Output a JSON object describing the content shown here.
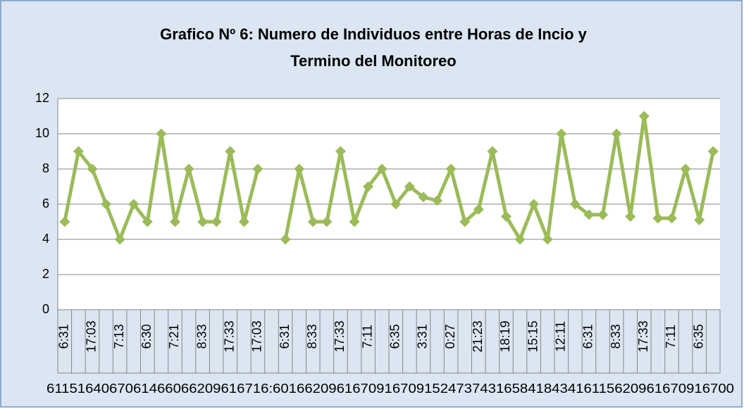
{
  "chart_data": {
    "type": "line",
    "title": "Grafico Nº 6: Numero de Individuos entre Horas de Incio y",
    "title_line2": "Termino del Monitoreo",
    "categories": [
      "6:31",
      null,
      "17:03",
      null,
      "7:13",
      null,
      "6:30",
      null,
      "7:21",
      null,
      "8:33",
      null,
      "17:33",
      null,
      "17:03",
      null,
      "6:31",
      null,
      "8:33",
      null,
      "17:33",
      null,
      "7:11",
      null,
      "6:35",
      null,
      "3:31",
      null,
      "0:27",
      null,
      "21:23",
      null,
      "18:19",
      null,
      "15:15",
      null,
      "12:11",
      null,
      "6:31",
      null,
      "8:33",
      null,
      "17:33",
      null,
      "7:11",
      null,
      "6:35",
      null
    ],
    "outer_labels": "6115164067061466066209616716:6016620961670916709152473743165841843416115620961670916700",
    "series": [
      {
        "name": "Individuos",
        "color": "#9bbb59",
        "values": [
          5,
          9,
          8,
          6,
          4,
          6,
          5,
          10,
          5,
          8,
          5,
          5,
          9,
          5,
          8,
          null,
          4,
          8,
          5,
          5,
          9,
          5,
          7,
          8,
          6,
          7,
          6.4,
          6.2,
          8,
          5,
          5.7,
          9,
          5.3,
          4,
          6,
          4,
          10,
          6,
          5.4,
          5.4,
          10,
          5.3,
          11,
          5.2,
          5.2,
          8,
          5.1,
          9
        ]
      }
    ],
    "ylim": [
      0,
      12
    ],
    "yticks": [
      0,
      2,
      4,
      6,
      8,
      10,
      12
    ],
    "grid": true
  }
}
